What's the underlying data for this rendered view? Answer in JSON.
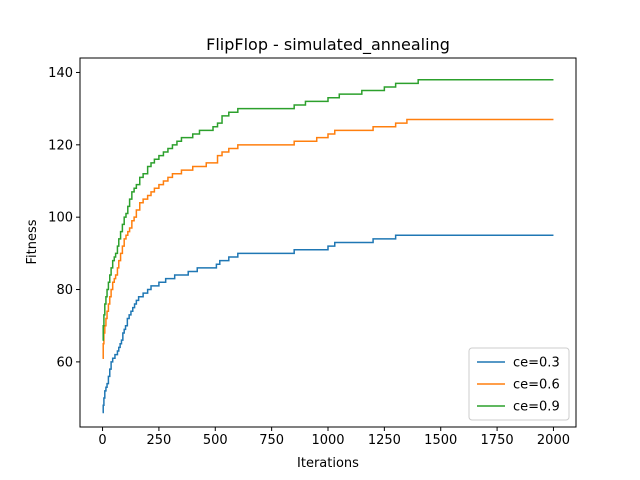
{
  "chart_data": {
    "type": "line",
    "title": "FlipFlop - simulated_annealing",
    "xlabel": "Iterations",
    "ylabel": "Fitness",
    "xlim": [
      -100,
      2100
    ],
    "ylim": [
      42,
      144
    ],
    "xticks": [
      0,
      250,
      500,
      750,
      1000,
      1250,
      1500,
      1750,
      2000
    ],
    "yticks": [
      60,
      80,
      100,
      120,
      140
    ],
    "grid": false,
    "legend_position": "lower-right",
    "series": [
      {
        "name": "ce=0.3",
        "color": "#1f77b4",
        "x": [
          0,
          3,
          6,
          10,
          15,
          20,
          26,
          32,
          38,
          45,
          50,
          55,
          60,
          66,
          72,
          78,
          84,
          90,
          96,
          102,
          110,
          118,
          126,
          134,
          142,
          150,
          160,
          170,
          180,
          200,
          215,
          230,
          250,
          280,
          300,
          320,
          350,
          380,
          400,
          420,
          450,
          480,
          500,
          505,
          510,
          520,
          540,
          560,
          580,
          600,
          700,
          840,
          850,
          950,
          1000,
          1030,
          1100,
          1180,
          1200,
          1250,
          1300,
          1400,
          1600,
          1800,
          2000
        ],
        "y": [
          46,
          48,
          50,
          52,
          53,
          54,
          56,
          58,
          60,
          61,
          61,
          62,
          62,
          63,
          64,
          65,
          66,
          68,
          69,
          70,
          72,
          73,
          74,
          75,
          76,
          77,
          78,
          78,
          79,
          80,
          81,
          81,
          82,
          83,
          83,
          84,
          84,
          85,
          85,
          86,
          86,
          86,
          86,
          87,
          87,
          88,
          88,
          89,
          89,
          90,
          90,
          90,
          91,
          91,
          92,
          93,
          93,
          93,
          94,
          94,
          95,
          95,
          95,
          95,
          95
        ]
      },
      {
        "name": "ce=0.6",
        "color": "#ff7f0e",
        "x": [
          0,
          3,
          6,
          10,
          15,
          20,
          26,
          32,
          38,
          45,
          52,
          58,
          66,
          72,
          80,
          88,
          96,
          104,
          112,
          120,
          130,
          140,
          150,
          165,
          180,
          200,
          215,
          230,
          250,
          270,
          290,
          310,
          330,
          350,
          380,
          400,
          430,
          460,
          490,
          510,
          530,
          560,
          580,
          600,
          650,
          700,
          800,
          840,
          850,
          950,
          1000,
          1030,
          1100,
          1180,
          1200,
          1300,
          1350,
          1400,
          1600,
          1800,
          2000
        ],
        "y": [
          61,
          65,
          68,
          70,
          72,
          74,
          76,
          78,
          80,
          82,
          83,
          84,
          86,
          88,
          90,
          92,
          94,
          95,
          96,
          97,
          99,
          100,
          102,
          104,
          105,
          106,
          107,
          108,
          109,
          110,
          111,
          112,
          112,
          113,
          113,
          114,
          114,
          115,
          115,
          117,
          118,
          119,
          119,
          120,
          120,
          120,
          120,
          120,
          121,
          122,
          123,
          124,
          124,
          124,
          125,
          126,
          127,
          127,
          127,
          127,
          127
        ]
      },
      {
        "name": "ce=0.9",
        "color": "#2ca02c",
        "x": [
          0,
          3,
          6,
          10,
          15,
          20,
          26,
          32,
          38,
          45,
          52,
          58,
          66,
          72,
          80,
          88,
          96,
          104,
          112,
          120,
          130,
          140,
          150,
          165,
          180,
          200,
          215,
          230,
          250,
          270,
          290,
          310,
          330,
          350,
          380,
          400,
          430,
          460,
          490,
          510,
          530,
          560,
          580,
          600,
          700,
          840,
          850,
          900,
          950,
          1000,
          1050,
          1100,
          1150,
          1200,
          1250,
          1300,
          1350,
          1400,
          1600,
          1800,
          2000
        ],
        "y": [
          66,
          70,
          73,
          76,
          78,
          80,
          82,
          84,
          86,
          88,
          89,
          90,
          92,
          94,
          96,
          98,
          100,
          101,
          103,
          105,
          107,
          108,
          109,
          111,
          112,
          114,
          115,
          116,
          117,
          118,
          119,
          120,
          121,
          122,
          122,
          123,
          124,
          124,
          125,
          126,
          128,
          129,
          129,
          130,
          130,
          130,
          131,
          132,
          132,
          133,
          134,
          134,
          135,
          135,
          136,
          137,
          137,
          138,
          138,
          138,
          138
        ]
      }
    ]
  }
}
